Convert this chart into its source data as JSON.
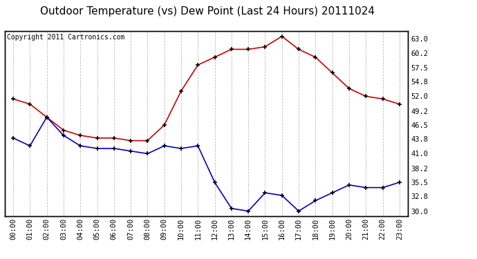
{
  "title": "Outdoor Temperature (vs) Dew Point (Last 24 Hours) 20111024",
  "copyright_text": "Copyright 2011 Cartronics.com",
  "x_labels": [
    "00:00",
    "01:00",
    "02:00",
    "03:00",
    "04:00",
    "05:00",
    "06:00",
    "07:00",
    "08:00",
    "09:00",
    "10:00",
    "11:00",
    "12:00",
    "13:00",
    "14:00",
    "15:00",
    "16:00",
    "17:00",
    "18:00",
    "19:00",
    "20:00",
    "21:00",
    "22:00",
    "23:00"
  ],
  "temp_data": [
    51.5,
    50.5,
    48.0,
    45.5,
    44.5,
    44.0,
    44.0,
    43.5,
    43.5,
    46.5,
    53.0,
    58.0,
    59.5,
    61.0,
    61.0,
    61.5,
    63.5,
    61.0,
    59.5,
    56.5,
    53.5,
    52.0,
    51.5,
    50.5
  ],
  "dew_data": [
    44.0,
    42.5,
    48.0,
    44.5,
    42.5,
    42.0,
    42.0,
    41.5,
    41.0,
    42.5,
    42.0,
    42.5,
    35.5,
    30.5,
    30.0,
    33.5,
    33.0,
    30.0,
    32.0,
    33.5,
    35.0,
    34.5,
    34.5,
    35.5
  ],
  "temp_color": "#cc0000",
  "dew_color": "#0000cc",
  "bg_color": "#ffffff",
  "plot_bg_color": "#ffffff",
  "grid_color": "#bbbbbb",
  "y_ticks": [
    30.0,
    32.8,
    35.5,
    38.2,
    41.0,
    43.8,
    46.5,
    49.2,
    52.0,
    54.8,
    57.5,
    60.2,
    63.0
  ],
  "ylim": [
    29.0,
    64.5
  ],
  "title_fontsize": 11,
  "tick_fontsize": 7.5,
  "copyright_fontsize": 7
}
